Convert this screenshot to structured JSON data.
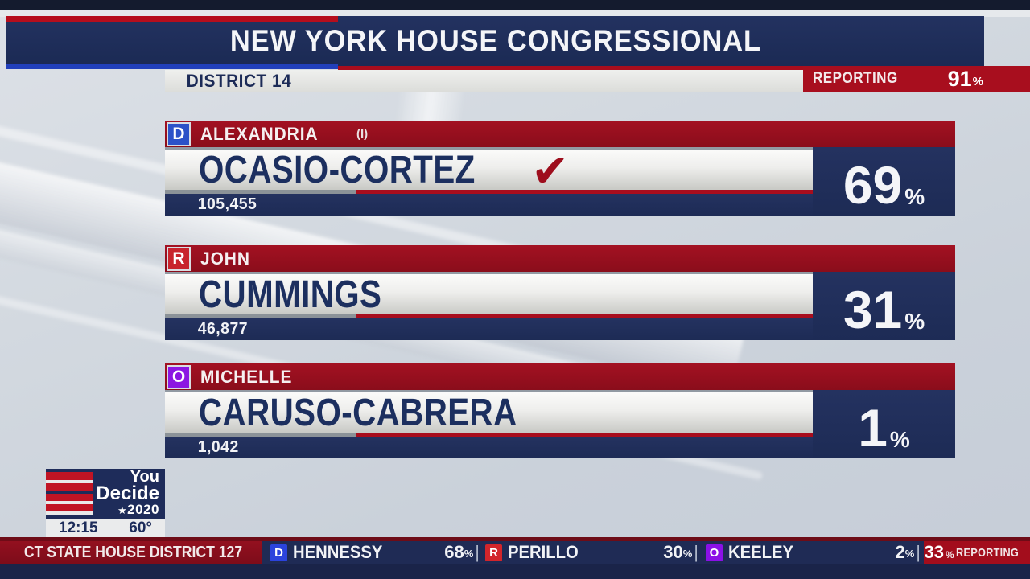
{
  "colors": {
    "navy": "#1d2b56",
    "accent_red": "#a80e1e",
    "dark_red": "#8c0f1f",
    "party_d_blue": "#2c52c8",
    "party_r_red": "#c8242c",
    "party_o_purple": "#8c16e2",
    "bright_blue_strip": "#2240bb",
    "winner_check_red": "#9e0e1d"
  },
  "header": {
    "title": "NEW YORK HOUSE CONGRESSIONAL",
    "district": "DISTRICT 14",
    "reporting_label": "REPORTING",
    "reporting_value": "91",
    "percent_sign": "%"
  },
  "race": {
    "pct_sign": "%",
    "winner_check": "✔",
    "candidates": [
      {
        "party": "D",
        "first": "ALEXANDRIA",
        "incumbent": "(I)",
        "last": "OCASIO-CORTEZ",
        "votes": "105,455",
        "pct": "69"
      },
      {
        "party": "R",
        "first": "JOHN",
        "last": "CUMMINGS",
        "votes": "46,877",
        "pct": "31"
      },
      {
        "party": "O",
        "first": "MICHELLE",
        "last": "CARUSO-CABRERA",
        "votes": "1,042",
        "pct": "1"
      }
    ]
  },
  "branding": {
    "line1": "You",
    "line2": "Decide",
    "star": "★",
    "year": "2020",
    "time": "12:15",
    "temp": "60°"
  },
  "ticker": {
    "race_label": "CT STATE HOUSE DISTRICT 127",
    "pct_sign": "%",
    "separator": "|",
    "entries": [
      {
        "party": "D",
        "name": "HENNESSY",
        "pct": "68"
      },
      {
        "party": "R",
        "name": "PERILLO",
        "pct": "30"
      },
      {
        "party": "O",
        "name": "KEELEY",
        "pct": "2"
      }
    ],
    "reporting_value": "33",
    "reporting_label": "REPORTING"
  }
}
